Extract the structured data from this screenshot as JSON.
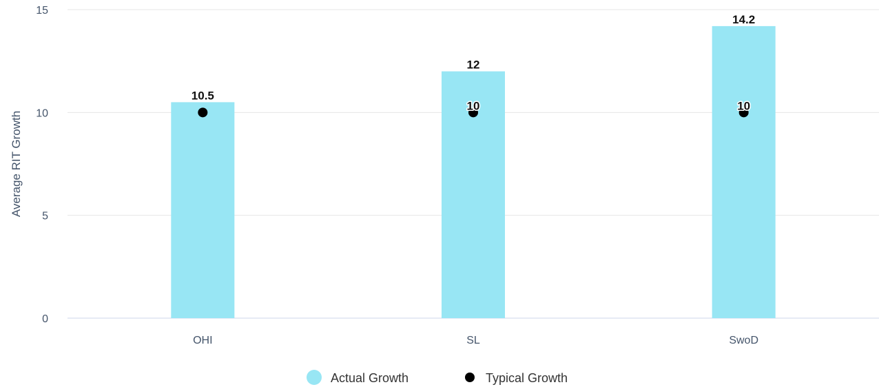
{
  "chart_data": {
    "type": "bar",
    "categories": [
      "OHI",
      "SL",
      "SwoD"
    ],
    "series": [
      {
        "name": "Actual Growth",
        "kind": "bar",
        "color": "#98e6f4",
        "values": [
          10.5,
          12,
          14.2
        ],
        "labels": [
          "10.5",
          "12",
          "14.2"
        ]
      },
      {
        "name": "Typical Growth",
        "kind": "scatter",
        "color": "#000000",
        "values": [
          10,
          10,
          10
        ],
        "labels": [
          "",
          "10",
          "10"
        ]
      }
    ],
    "title": "",
    "xlabel": "",
    "ylabel": "Average RIT Growth",
    "ylim": [
      0,
      15
    ],
    "yticks": [
      "0",
      "5",
      "10",
      "15"
    ],
    "grid": true,
    "legend_position": "bottom"
  }
}
